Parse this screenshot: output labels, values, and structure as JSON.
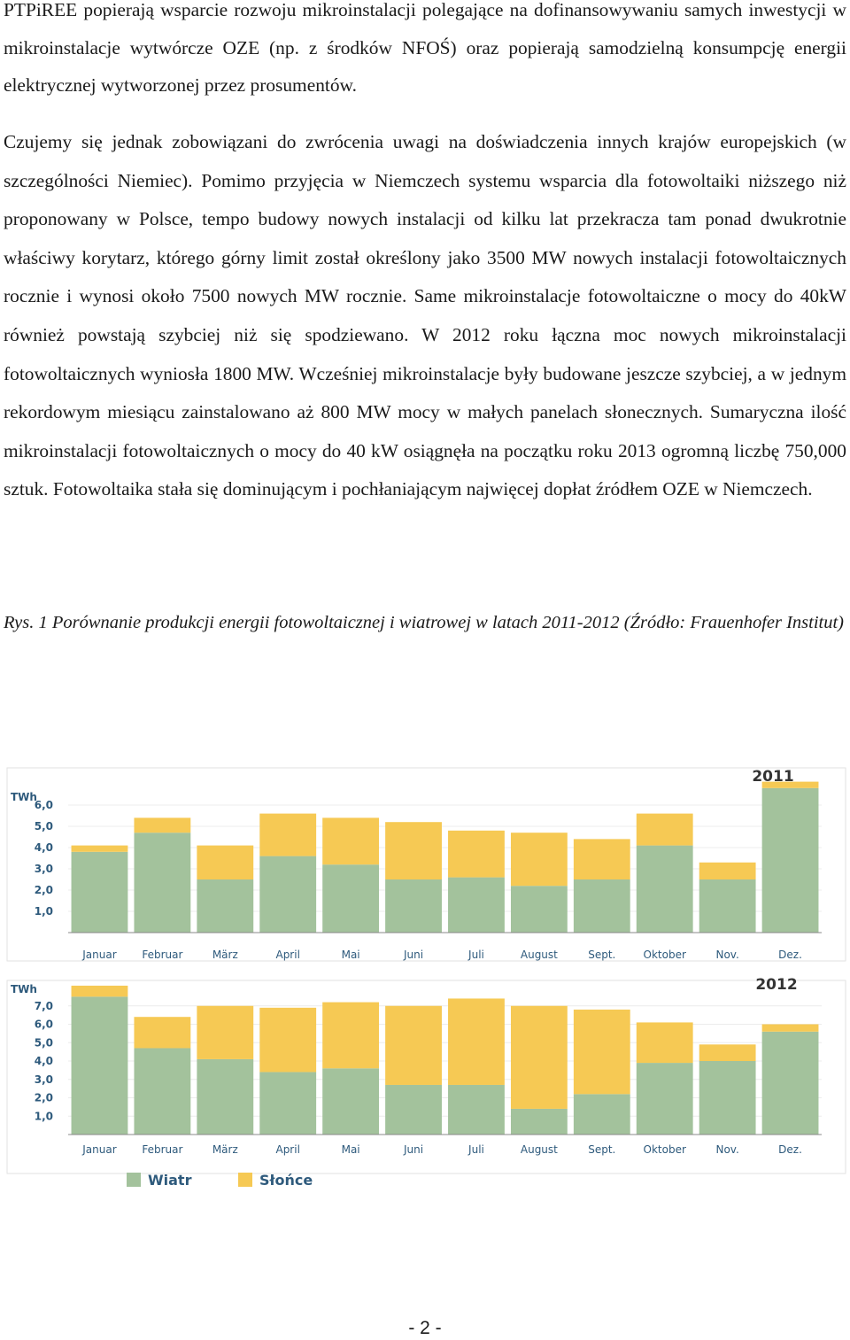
{
  "document": {
    "paragraph_1": "PTPiREE popierają wsparcie rozwoju mikroinstalacji polegające na dofinansowywaniu samych inwestycji w mikroinstalacje wytwórcze OZE (np. z środków NFOŚ) oraz popierają samodzielną konsumpcję energii elektrycznej wytworzonej przez prosumentów.",
    "paragraph_2": "Czujemy się jednak zobowiązani do zwrócenia uwagi na doświadczenia innych krajów europejskich (w szczególności Niemiec). Pomimo przyjęcia w Niemczech systemu wsparcia dla fotowoltaiki niższego niż proponowany w Polsce, tempo budowy nowych instalacji od kilku lat przekracza tam ponad dwukrotnie właściwy korytarz, którego górny limit został określony jako 3500 MW nowych instalacji fotowoltaicznych rocznie i wynosi około 7500 nowych MW rocznie. Same mikroinstalacje fotowoltaiczne o mocy do 40kW również powstają szybciej niż się spodziewano. W 2012 roku łączna moc nowych mikroinstalacji fotowoltaicznych wyniosła 1800 MW. Wcześniej mikroinstalacje były budowane jeszcze szybciej, a w jednym rekordowym miesiącu zainstalowano aż 800 MW mocy w małych panelach słonecznych. Sumaryczna ilość mikroinstalacji fotowoltaicznych o mocy do 40 kW osiągnęła na początku roku 2013 ogromną liczbę 750,000 sztuk. Fotowoltaika stała się dominującym i pochłaniającym najwięcej dopłat źródłem OZE w Niemczech.",
    "caption": "Rys. 1 Porównanie produkcji energii fotowoltaicznej i wiatrowej w latach 2011-2012 (Źródło: Frauenhofer Institut)",
    "page_number": "- 2 -"
  },
  "chart_data": [
    {
      "type": "bar",
      "stacked": true,
      "title": "2011",
      "ylabel": "TWh",
      "ylim": [
        0,
        7.0
      ],
      "yticks": [
        "1,0",
        "2,0",
        "3,0",
        "4,0",
        "5,0",
        "6,0"
      ],
      "categories": [
        "Januar",
        "Februar",
        "März",
        "April",
        "Mai",
        "Juni",
        "Juli",
        "August",
        "Sept.",
        "Oktober",
        "Nov.",
        "Dez."
      ],
      "series": [
        {
          "name": "Wiatr",
          "color": "#a3c29c",
          "values": [
            3.8,
            4.7,
            2.5,
            3.6,
            3.2,
            2.5,
            2.6,
            2.2,
            2.5,
            4.1,
            2.5,
            6.8
          ]
        },
        {
          "name": "Słońce",
          "color": "#f6c954",
          "values": [
            0.3,
            0.7,
            1.6,
            2.0,
            2.2,
            2.7,
            2.2,
            2.5,
            1.9,
            1.5,
            0.8,
            0.3
          ]
        }
      ]
    },
    {
      "type": "bar",
      "stacked": true,
      "title": "2012",
      "ylabel": "TWh",
      "ylim": [
        0,
        8.0
      ],
      "yticks": [
        "1,0",
        "2,0",
        "3,0",
        "4,0",
        "5,0",
        "6,0",
        "7,0"
      ],
      "categories": [
        "Januar",
        "Februar",
        "März",
        "April",
        "Mai",
        "Juni",
        "Juli",
        "August",
        "Sept.",
        "Oktober",
        "Nov.",
        "Dez."
      ],
      "series": [
        {
          "name": "Wiatr",
          "color": "#a3c29c",
          "values": [
            7.5,
            4.7,
            4.1,
            3.4,
            3.6,
            2.7,
            2.7,
            1.4,
            2.2,
            3.9,
            4.0,
            5.6
          ]
        },
        {
          "name": "Słońce",
          "color": "#f6c954",
          "values": [
            0.6,
            1.7,
            2.9,
            3.5,
            3.6,
            4.3,
            4.7,
            5.6,
            4.6,
            2.2,
            0.9,
            0.4
          ]
        }
      ]
    }
  ],
  "legend": {
    "items": [
      {
        "label": "Wiatr",
        "color": "#a3c29c"
      },
      {
        "label": "Słońce",
        "color": "#f6c954"
      }
    ]
  }
}
